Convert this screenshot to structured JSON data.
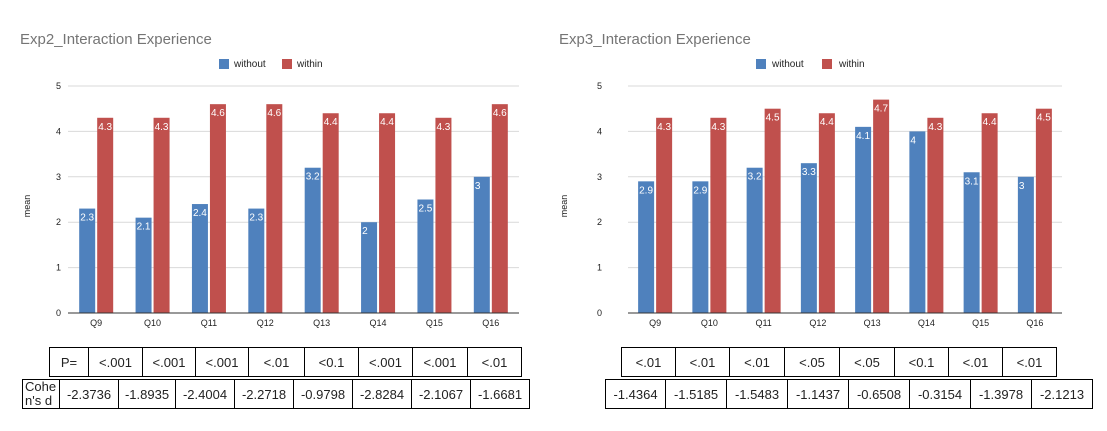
{
  "chart_data": [
    {
      "type": "bar",
      "title": "Exp2_Interaction Experience",
      "categories": [
        "Q9",
        "Q10",
        "Q11",
        "Q12",
        "Q13",
        "Q14",
        "Q15",
        "Q16"
      ],
      "series": [
        {
          "name": "without",
          "color": "#4f81bd",
          "values": [
            2.3,
            2.1,
            2.4,
            2.3,
            3.2,
            2,
            2.5,
            3
          ]
        },
        {
          "name": "within",
          "color": "#c0504d",
          "values": [
            4.3,
            4.3,
            4.6,
            4.6,
            4.4,
            4.4,
            4.3,
            4.6
          ]
        }
      ],
      "data_labels": {
        "without": [
          "2.3",
          "2.1",
          "2.4",
          "2.3",
          "3.2",
          "2",
          "2.5",
          "3"
        ],
        "within": [
          "4.3",
          "4.3",
          "4.6",
          "4.6",
          "4.4",
          "4.4",
          "4.3",
          "4.6"
        ]
      },
      "ylabel": "mean",
      "ylim": [
        0,
        5
      ],
      "yticks": [
        "0",
        "1",
        "2",
        "3",
        "4",
        "5"
      ],
      "legend": "top-center",
      "grid": true
    },
    {
      "type": "bar",
      "title": "Exp3_Interaction Experience",
      "categories": [
        "Q9",
        "Q10",
        "Q11",
        "Q12",
        "Q13",
        "Q14",
        "Q15",
        "Q16"
      ],
      "series": [
        {
          "name": "without",
          "color": "#4f81bd",
          "values": [
            2.9,
            2.9,
            3.2,
            3.3,
            4.1,
            4,
            3.1,
            3
          ]
        },
        {
          "name": "within",
          "color": "#c0504d",
          "values": [
            4.3,
            4.3,
            4.5,
            4.4,
            4.7,
            4.3,
            4.4,
            4.5
          ]
        }
      ],
      "data_labels": {
        "without": [
          "2.9",
          "2.9",
          "3.2",
          "3.3",
          "4.1",
          "4",
          "3.1",
          "3"
        ],
        "within": [
          "4.3",
          "4.3",
          "4.5",
          "4.4",
          "4.7",
          "4.3",
          "4.4",
          "4.5"
        ]
      },
      "ylabel": "mean",
      "ylim": [
        0,
        5
      ],
      "yticks": [
        "0",
        "1",
        "2",
        "3",
        "4",
        "5"
      ],
      "legend": "top-center",
      "grid": true
    }
  ],
  "tables": {
    "left": {
      "p_label": "P=",
      "p_values": [
        "<.001",
        "<.001",
        "<.001",
        "<.01",
        "<0.1",
        "<.001",
        "<.001",
        "<.01"
      ],
      "d_label_line1": "Cohe",
      "d_label_line2": "n's d",
      "d_values": [
        "-2.3736",
        "-1.8935",
        "-2.4004",
        "-2.2718",
        "-0.9798",
        "-2.8284",
        "-2.1067",
        "-1.6681"
      ]
    },
    "right": {
      "p_values": [
        "<.01",
        "<.01",
        "<.01",
        "<.05",
        "<.05",
        "<0.1",
        "<.01",
        "<.01"
      ],
      "d_values": [
        "-1.4364",
        "-1.5185",
        "-1.5483",
        "-1.1437",
        "-0.6508",
        "-0.3154",
        "-1.3978",
        "-2.1213"
      ]
    }
  }
}
